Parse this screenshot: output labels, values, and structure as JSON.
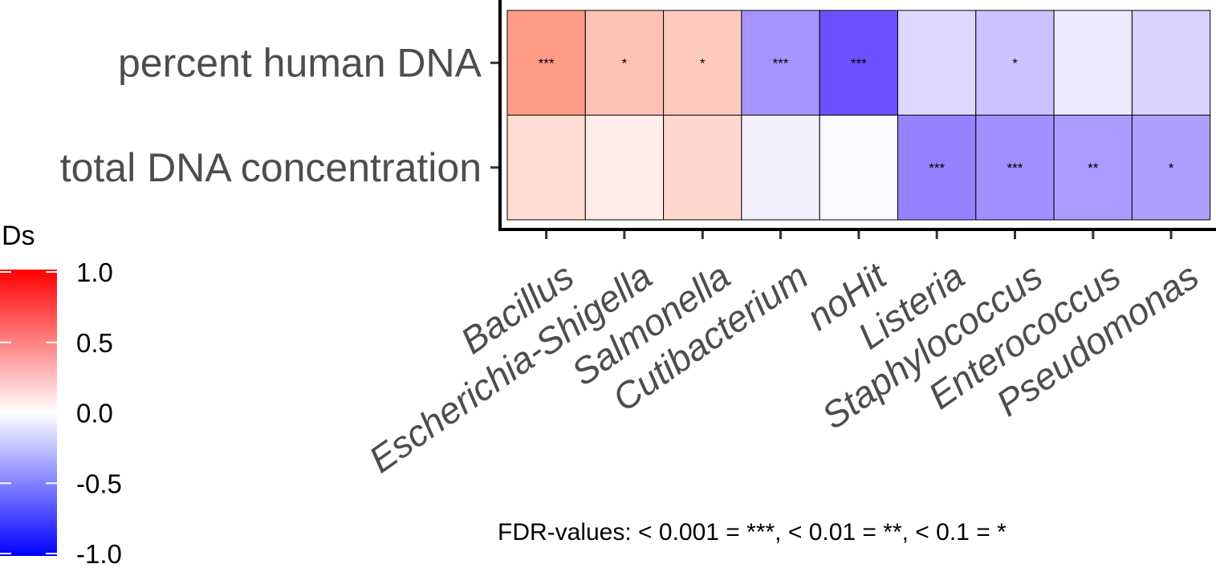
{
  "chart_data": {
    "type": "heatmap",
    "rows": [
      "percent human DNA",
      "total DNA concentration"
    ],
    "columns": [
      "Bacillus",
      "Escherichia-Shigella",
      "Salmonella",
      "Cutibacterium",
      "noHit",
      "Listeria",
      "Staphylococcus",
      "Enterococcus",
      "Pseudomonas"
    ],
    "values": [
      [
        0.62,
        0.37,
        0.33,
        -0.48,
        -0.78,
        -0.18,
        -0.27,
        -0.1,
        -0.2
      ],
      [
        0.22,
        0.12,
        0.25,
        -0.07,
        -0.02,
        -0.56,
        -0.5,
        -0.45,
        -0.43
      ]
    ],
    "significance": [
      [
        "***",
        "*",
        "*",
        "***",
        "***",
        "",
        "*",
        "",
        ""
      ],
      [
        "",
        "",
        "",
        "",
        "",
        "***",
        "***",
        "**",
        "*"
      ]
    ],
    "colorbar": {
      "title": "Ds",
      "range": [
        -1.0,
        1.0
      ],
      "ticks": [
        "1.0",
        "0.5",
        "0.0",
        "-0.5",
        "-1.0"
      ],
      "tick_values": [
        1.0,
        0.5,
        0.0,
        -0.5,
        -1.0
      ],
      "low_color": "#0000ff",
      "mid_color": "#ffffff",
      "high_color": "#ff0000"
    },
    "footnote": "FDR-values: < 0.001 = ***, < 0.01 = **, < 0.1 = *"
  }
}
